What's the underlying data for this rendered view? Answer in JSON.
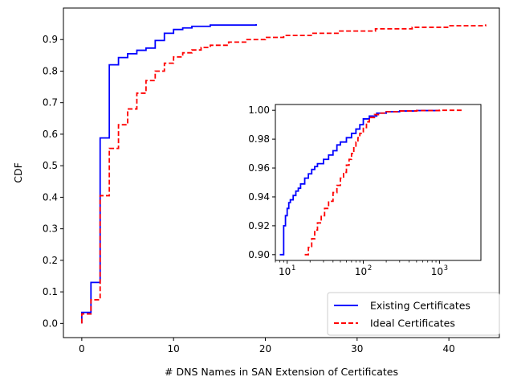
{
  "chart_data": [
    {
      "type": "line",
      "title": "",
      "xlabel": "# DNS Names in SAN Extension of Certificates",
      "ylabel": "CDF",
      "xlim": [
        -2,
        45.5
      ],
      "ylim": [
        -0.045,
        1.0
      ],
      "xticks": [
        0,
        10,
        20,
        30,
        40
      ],
      "yticks": [
        0.0,
        0.1,
        0.2,
        0.3,
        0.4,
        0.5,
        0.6,
        0.7,
        0.8,
        0.9
      ],
      "xtick_labels": [
        "0",
        "10",
        "20",
        "30",
        "40"
      ],
      "ytick_labels": [
        "0.0",
        "0.1",
        "0.2",
        "0.3",
        "0.4",
        "0.5",
        "0.6",
        "0.7",
        "0.8",
        "0.9"
      ],
      "grid": false,
      "legend_position": "lower-right",
      "series": [
        {
          "name": "Existing Certificates",
          "color": "#0000ff",
          "style": "solid",
          "step": true,
          "x": [
            0,
            1,
            2,
            3,
            4,
            5,
            6,
            7,
            8,
            9,
            10,
            11,
            12,
            14,
            19
          ],
          "y": [
            0.035,
            0.13,
            0.588,
            0.82,
            0.843,
            0.855,
            0.866,
            0.873,
            0.897,
            0.92,
            0.932,
            0.937,
            0.942,
            0.946,
            0.949
          ]
        },
        {
          "name": "Ideal Certificates",
          "color": "#ff0000",
          "style": "dashed",
          "step": true,
          "x": [
            0,
            1,
            2,
            3,
            4,
            5,
            6,
            7,
            8,
            9,
            10,
            11,
            12,
            13,
            14,
            16,
            18,
            20,
            22,
            25,
            28,
            32,
            36,
            40,
            44
          ],
          "y": [
            0.03,
            0.075,
            0.405,
            0.555,
            0.63,
            0.68,
            0.73,
            0.77,
            0.8,
            0.825,
            0.845,
            0.858,
            0.867,
            0.875,
            0.882,
            0.892,
            0.9,
            0.907,
            0.913,
            0.92,
            0.927,
            0.934,
            0.939,
            0.944,
            0.948
          ]
        }
      ]
    },
    {
      "type": "line",
      "title": "",
      "xlabel": "",
      "ylabel": "",
      "xscale": "log",
      "xlim": [
        7,
        3500
      ],
      "ylim": [
        0.896,
        1.004
      ],
      "xticks": [
        10,
        100,
        1000
      ],
      "xtick_labels": [
        "10",
        "10",
        "10"
      ],
      "xtick_exponents": [
        "1",
        "2",
        "3"
      ],
      "yticks": [
        0.9,
        0.92,
        0.94,
        0.96,
        0.98,
        1.0
      ],
      "ytick_labels": [
        "0.90",
        "0.92",
        "0.94",
        "0.96",
        "0.98",
        "1.00"
      ],
      "grid": false,
      "series": [
        {
          "name": "Existing Certificates",
          "color": "#0000ff",
          "style": "solid",
          "step": true,
          "x": [
            8,
            9,
            9.5,
            10,
            10.5,
            11,
            12,
            13,
            14,
            15,
            17,
            19,
            21,
            23,
            25,
            30,
            35,
            40,
            45,
            50,
            60,
            70,
            80,
            90,
            100,
            120,
            150,
            200,
            300,
            500,
            1000
          ],
          "y": [
            0.9,
            0.92,
            0.927,
            0.932,
            0.936,
            0.938,
            0.941,
            0.944,
            0.946,
            0.949,
            0.953,
            0.956,
            0.959,
            0.961,
            0.963,
            0.966,
            0.969,
            0.972,
            0.976,
            0.978,
            0.981,
            0.984,
            0.987,
            0.99,
            0.994,
            0.996,
            0.998,
            0.999,
            0.9995,
            0.9998,
            1.0
          ]
        },
        {
          "name": "Ideal Certificates",
          "color": "#ff0000",
          "style": "dashed",
          "step": true,
          "x": [
            17,
            19,
            21,
            23,
            25,
            28,
            31,
            35,
            40,
            45,
            50,
            55,
            60,
            65,
            70,
            75,
            80,
            85,
            90,
            100,
            110,
            120,
            140,
            170,
            200,
            300,
            500,
            1000,
            2000
          ],
          "y": [
            0.9,
            0.905,
            0.911,
            0.917,
            0.922,
            0.927,
            0.932,
            0.937,
            0.943,
            0.948,
            0.953,
            0.957,
            0.962,
            0.966,
            0.97,
            0.974,
            0.978,
            0.981,
            0.984,
            0.988,
            0.992,
            0.995,
            0.997,
            0.998,
            0.999,
            0.9995,
            0.9998,
            1.0,
            1.0
          ]
        }
      ]
    }
  ]
}
